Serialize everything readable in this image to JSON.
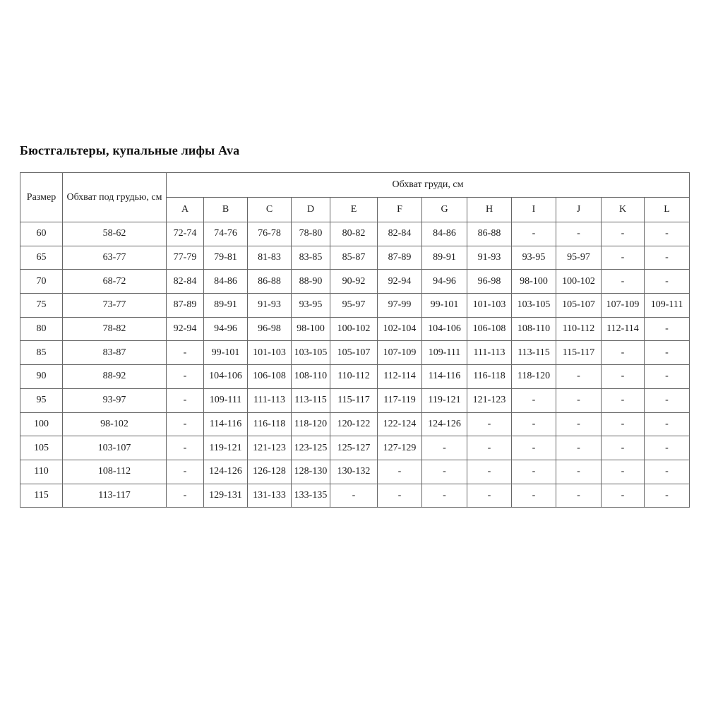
{
  "page": {
    "title": "Бюстгальтеры, купальные лифы Ava"
  },
  "table": {
    "size_header": "Размер",
    "underbust_header": "Обхват под грудью, см",
    "bust_header": "Обхват груди, см",
    "cup_headers": [
      "A",
      "B",
      "C",
      "D",
      "E",
      "F",
      "G",
      "H",
      "I",
      "J",
      "K",
      "L"
    ],
    "empty_marker": "-",
    "rows": [
      {
        "size": "60",
        "underbust": "58-62",
        "cups": [
          "72-74",
          "74-76",
          "76-78",
          "78-80",
          "80-82",
          "82-84",
          "84-86",
          "86-88",
          "-",
          "-",
          "-",
          "-"
        ]
      },
      {
        "size": "65",
        "underbust": "63-77",
        "cups": [
          "77-79",
          "79-81",
          "81-83",
          "83-85",
          "85-87",
          "87-89",
          "89-91",
          "91-93",
          "93-95",
          "95-97",
          "-",
          "-"
        ]
      },
      {
        "size": "70",
        "underbust": "68-72",
        "cups": [
          "82-84",
          "84-86",
          "86-88",
          "88-90",
          "90-92",
          "92-94",
          "94-96",
          "96-98",
          "98-100",
          "100-102",
          "-",
          "-"
        ]
      },
      {
        "size": "75",
        "underbust": "73-77",
        "cups": [
          "87-89",
          "89-91",
          "91-93",
          "93-95",
          "95-97",
          "97-99",
          "99-101",
          "101-103",
          "103-105",
          "105-107",
          "107-109",
          "109-111"
        ]
      },
      {
        "size": "80",
        "underbust": "78-82",
        "cups": [
          "92-94",
          "94-96",
          "96-98",
          "98-100",
          "100-102",
          "102-104",
          "104-106",
          "106-108",
          "108-110",
          "110-112",
          "112-114",
          "-"
        ]
      },
      {
        "size": "85",
        "underbust": "83-87",
        "cups": [
          "-",
          "99-101",
          "101-103",
          "103-105",
          "105-107",
          "107-109",
          "109-111",
          "111-113",
          "113-115",
          "115-117",
          "-",
          "-"
        ]
      },
      {
        "size": "90",
        "underbust": "88-92",
        "cups": [
          "-",
          "104-106",
          "106-108",
          "108-110",
          "110-112",
          "112-114",
          "114-116",
          "116-118",
          "118-120",
          "-",
          "-",
          "-"
        ]
      },
      {
        "size": "95",
        "underbust": "93-97",
        "cups": [
          "-",
          "109-111",
          "111-113",
          "113-115",
          "115-117",
          "117-119",
          "119-121",
          "121-123",
          "-",
          "-",
          "-",
          "-"
        ]
      },
      {
        "size": "100",
        "underbust": "98-102",
        "cups": [
          "-",
          "114-116",
          "116-118",
          "118-120",
          "120-122",
          "122-124",
          "124-126",
          "-",
          "-",
          "-",
          "-",
          "-"
        ]
      },
      {
        "size": "105",
        "underbust": "103-107",
        "cups": [
          "-",
          "119-121",
          "121-123",
          "123-125",
          "125-127",
          "127-129",
          "-",
          "-",
          "-",
          "-",
          "-",
          "-"
        ]
      },
      {
        "size": "110",
        "underbust": "108-112",
        "cups": [
          "-",
          "124-126",
          "126-128",
          "128-130",
          "130-132",
          "-",
          "-",
          "-",
          "-",
          "-",
          "-",
          "-"
        ]
      },
      {
        "size": "115",
        "underbust": "113-117",
        "cups": [
          "-",
          "129-131",
          "131-133",
          "133-135",
          "-",
          "-",
          "-",
          "-",
          "-",
          "-",
          "-",
          "-"
        ]
      }
    ]
  }
}
